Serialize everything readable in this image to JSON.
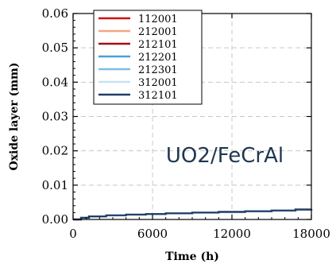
{
  "chart_data": {
    "type": "line",
    "title": "",
    "xlabel": "Time (h)",
    "ylabel": "Oxide layer (mm)",
    "xlim": [
      0,
      18000
    ],
    "ylim": [
      0,
      0.06
    ],
    "xticks": [
      "0",
      "6000",
      "12000",
      "18000"
    ],
    "yticks": [
      "0.00",
      "0.01",
      "0.02",
      "0.03",
      "0.04",
      "0.05",
      "0.06"
    ],
    "grid": true,
    "legend_position": "top-left",
    "annotation": "UO2/FeCrAl",
    "series": [
      {
        "name": "112001",
        "color": "#cc1111",
        "x": [
          0,
          600,
          1200,
          2500,
          4000,
          5500,
          7000,
          9000,
          11000,
          13000,
          15000,
          16800,
          18000
        ],
        "y": [
          0,
          0.0005,
          0.0009,
          0.0012,
          0.0014,
          0.0016,
          0.0018,
          0.002,
          0.0022,
          0.0024,
          0.0026,
          0.0029,
          0.003
        ]
      },
      {
        "name": "212001",
        "color": "#f4a582",
        "x": [
          0,
          600,
          1200,
          2500,
          4000,
          5500,
          7000,
          9000,
          11000,
          13000,
          15000,
          16800,
          18000
        ],
        "y": [
          0,
          0.0005,
          0.0009,
          0.0012,
          0.0014,
          0.0016,
          0.0018,
          0.002,
          0.0022,
          0.0024,
          0.0026,
          0.0029,
          0.003
        ]
      },
      {
        "name": "212101",
        "color": "#a01010",
        "x": [
          0,
          600,
          1200,
          2500,
          4000,
          5500,
          7000,
          9000,
          11000,
          13000,
          15000,
          16800,
          18000
        ],
        "y": [
          0,
          0.0005,
          0.0009,
          0.0012,
          0.0014,
          0.0016,
          0.0018,
          0.002,
          0.0022,
          0.0024,
          0.0026,
          0.0029,
          0.003
        ]
      },
      {
        "name": "212201",
        "color": "#4a9fd8",
        "x": [
          0,
          600,
          1200,
          2500,
          4000,
          5500,
          7000,
          9000,
          11000,
          13000,
          15000,
          16800,
          18000
        ],
        "y": [
          0,
          0.0005,
          0.0009,
          0.0012,
          0.0014,
          0.0016,
          0.0018,
          0.002,
          0.0022,
          0.0024,
          0.0026,
          0.0029,
          0.003
        ]
      },
      {
        "name": "212301",
        "color": "#7ec0e4",
        "x": [
          0,
          600,
          1200,
          2500,
          4000,
          5500,
          7000,
          9000,
          11000,
          13000,
          15000,
          16800,
          18000
        ],
        "y": [
          0,
          0.0005,
          0.0009,
          0.0012,
          0.0014,
          0.0016,
          0.0018,
          0.002,
          0.0022,
          0.0024,
          0.0026,
          0.0029,
          0.003
        ]
      },
      {
        "name": "312001",
        "color": "#c6e2f2",
        "x": [
          0,
          600,
          1200,
          2500,
          4000,
          5500,
          7000,
          9000,
          11000,
          13000,
          15000,
          16800,
          18000
        ],
        "y": [
          0,
          0.0005,
          0.0009,
          0.0012,
          0.0014,
          0.0016,
          0.0018,
          0.002,
          0.0022,
          0.0024,
          0.0026,
          0.0029,
          0.003
        ]
      },
      {
        "name": "312101",
        "color": "#1f3f66",
        "x": [
          0,
          600,
          1200,
          2500,
          4000,
          5500,
          7000,
          9000,
          11000,
          13000,
          15000,
          16800,
          18000
        ],
        "y": [
          0,
          0.0005,
          0.0009,
          0.0012,
          0.0014,
          0.0016,
          0.0018,
          0.002,
          0.0022,
          0.0024,
          0.0026,
          0.0029,
          0.003
        ]
      }
    ]
  }
}
